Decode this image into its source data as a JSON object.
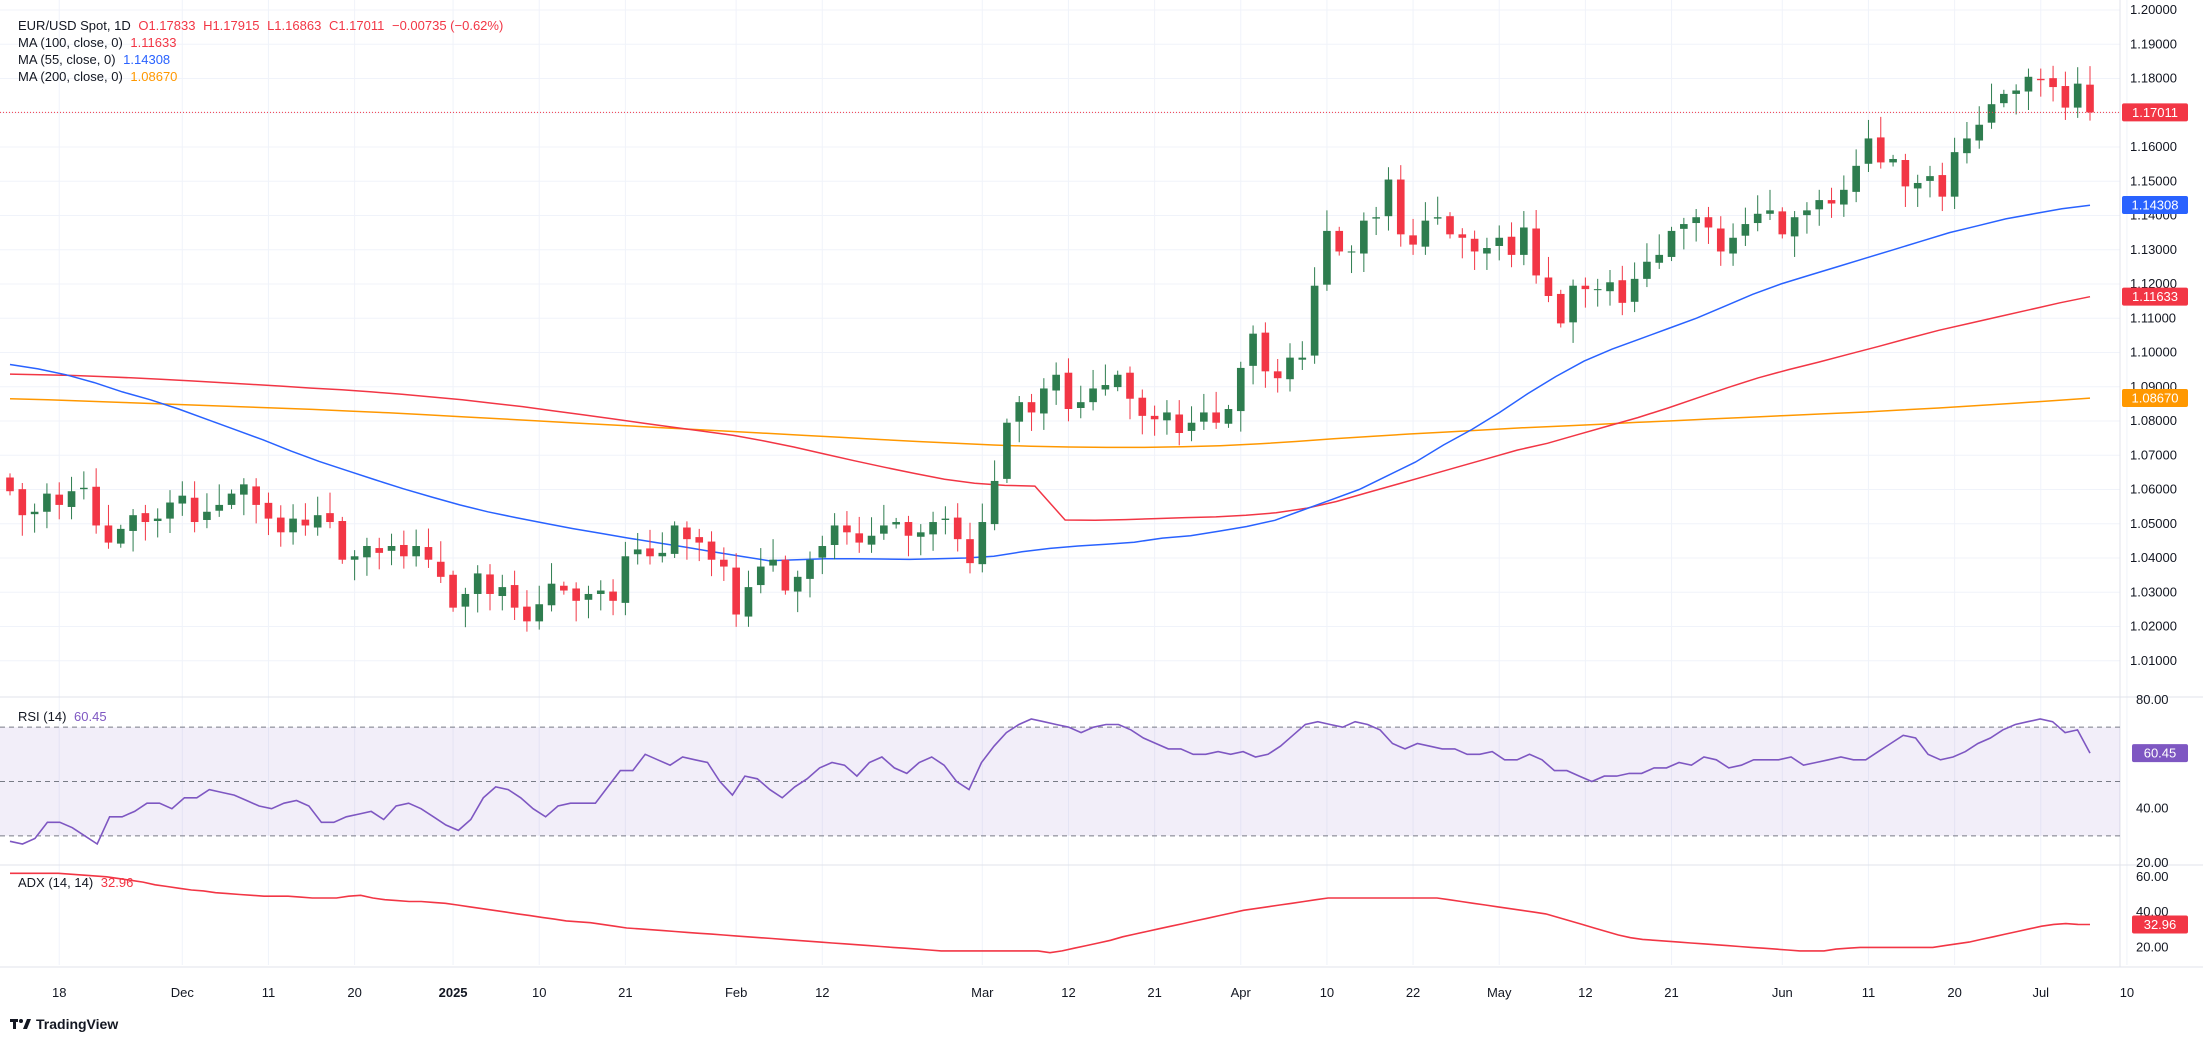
{
  "header": {
    "symbol": "EUR/USD Spot, 1D",
    "open": "O1.17833",
    "high": "H1.17915",
    "low": "L1.16863",
    "close": "C1.17011",
    "change": "−0.00735 (−0.62%)"
  },
  "ma_legend": [
    {
      "label": "MA (100, close, 0)",
      "value": "1.11633",
      "color": "#f23645"
    },
    {
      "label": "MA (55, close, 0)",
      "value": "1.14308",
      "color": "#2962ff"
    },
    {
      "label": "MA (200, close, 0)",
      "value": "1.08670",
      "color": "#ff9800"
    }
  ],
  "rsi_legend": {
    "label": "RSI (14)",
    "value": "60.45",
    "color": "#7e57c2"
  },
  "adx_legend": {
    "label": "ADX (14, 14)",
    "value": "32.96",
    "color": "#f23645"
  },
  "branding": {
    "name": "TradingView",
    "icon": "tradingview-logo-icon"
  },
  "colors": {
    "up": "#26a69a",
    "up_body": "#2e7d4f",
    "down": "#f23645",
    "grid": "#f0f3fa",
    "axis_text": "#131722"
  },
  "chart_data": {
    "type": "candlestick",
    "title": "EUR/USD Spot, 1D",
    "price_axis": {
      "ylim": [
        1.0,
        1.2
      ],
      "ticks": [
        "1.01000",
        "1.02000",
        "1.03000",
        "1.04000",
        "1.05000",
        "1.06000",
        "1.07000",
        "1.08000",
        "1.09000",
        "1.10000",
        "1.11000",
        "1.12000",
        "1.13000",
        "1.14000",
        "1.15000",
        "1.16000",
        "1.17000",
        "1.18000",
        "1.19000",
        "1.20000"
      ]
    },
    "x_ticks": [
      {
        "label": "18",
        "bar": 4,
        "bold": false
      },
      {
        "label": "Dec",
        "bar": 14,
        "bold": false
      },
      {
        "label": "11",
        "bar": 21,
        "bold": false
      },
      {
        "label": "20",
        "bar": 28,
        "bold": false
      },
      {
        "label": "2025",
        "bar": 36,
        "bold": true
      },
      {
        "label": "10",
        "bar": 43,
        "bold": false
      },
      {
        "label": "21",
        "bar": 50,
        "bold": false
      },
      {
        "label": "Feb",
        "bar": 59,
        "bold": false
      },
      {
        "label": "12",
        "bar": 66,
        "bold": false
      },
      {
        "label": "Mar",
        "bar": 79,
        "bold": false
      },
      {
        "label": "12",
        "bar": 86,
        "bold": false
      },
      {
        "label": "21",
        "bar": 93,
        "bold": false
      },
      {
        "label": "Apr",
        "bar": 100,
        "bold": false
      },
      {
        "label": "10",
        "bar": 107,
        "bold": false
      },
      {
        "label": "22",
        "bar": 114,
        "bold": false
      },
      {
        "label": "May",
        "bar": 121,
        "bold": false
      },
      {
        "label": "12",
        "bar": 128,
        "bold": false
      },
      {
        "label": "21",
        "bar": 135,
        "bold": false
      },
      {
        "label": "Jun",
        "bar": 144,
        "bold": false
      },
      {
        "label": "11",
        "bar": 151,
        "bold": false
      },
      {
        "label": "20",
        "bar": 158,
        "bold": false
      },
      {
        "label": "Jul",
        "bar": 165,
        "bold": false
      },
      {
        "label": "10",
        "bar": 172,
        "bold": false
      }
    ],
    "closes": [
      1.0595,
      1.0525,
      1.0535,
      1.0588,
      1.0555,
      1.0595,
      1.0605,
      1.0495,
      1.0445,
      1.0485,
      1.0525,
      1.0505,
      1.0515,
      1.0562,
      1.0582,
      1.0505,
      1.0535,
      1.0555,
      1.0588,
      1.0615,
      1.0555,
      1.0515,
      1.0475,
      1.0515,
      1.0495,
      1.0525,
      1.0505,
      1.0395,
      1.0405,
      1.0435,
      1.0415,
      1.0435,
      1.0405,
      1.0435,
      1.0395,
      1.0345,
      1.0255,
      1.0295,
      1.0355,
      1.0295,
      1.0315,
      1.0255,
      1.0215,
      1.0265,
      1.0325,
      1.0305,
      1.0275,
      1.0295,
      1.0305,
      1.0275,
      1.0405,
      1.0425,
      1.0405,
      1.0415,
      1.0495,
      1.0455,
      1.0445,
      1.0395,
      1.0375,
      1.0235,
      1.0315,
      1.0375,
      1.0395,
      1.0305,
      1.0345,
      1.0395,
      1.0435,
      1.0495,
      1.0475,
      1.0445,
      1.0465,
      1.0495,
      1.0505,
      1.0465,
      1.0475,
      1.0505,
      1.0515,
      1.0455,
      1.0385,
      1.0505,
      1.0625,
      1.0795,
      1.0855,
      1.0825,
      1.0895,
      1.0935,
      1.0835,
      1.0855,
      1.0895,
      1.0905,
      1.0935,
      1.0865,
      1.0815,
      1.0805,
      1.0825,
      1.0765,
      1.0795,
      1.0825,
      1.0795,
      1.0835,
      1.0955,
      1.1055,
      1.0945,
      1.0925,
      1.0985,
      1.0985,
      1.1195,
      1.1355,
      1.1295,
      1.1295,
      1.1385,
      1.1395,
      1.1505,
      1.1345,
      1.1315,
      1.1385,
      1.1395,
      1.1345,
      1.1335,
      1.1295,
      1.1305,
      1.1335,
      1.1285,
      1.1365,
      1.1225,
      1.1165,
      1.1085,
      1.1195,
      1.1185,
      1.1185,
      1.1205,
      1.1145,
      1.1215,
      1.1265,
      1.1285,
      1.1355,
      1.1375,
      1.1395,
      1.1365,
      1.1295,
      1.1335,
      1.1375,
      1.1405,
      1.1415,
      1.1345,
      1.1395,
      1.1415,
      1.1445,
      1.1435,
      1.1475,
      1.1545,
      1.1625,
      1.1555,
      1.1565,
      1.1485,
      1.1495,
      1.1515,
      1.1455,
      1.1585,
      1.1625,
      1.1665,
      1.1725,
      1.1755,
      1.1765,
      1.1805,
      1.1795,
      1.1775,
      1.1715,
      1.1785,
      1.1701
    ],
    "ma55": [
      1.0965,
      1.0952,
      1.0935,
      1.0912,
      1.0885,
      1.0862,
      1.0835,
      1.0805,
      1.0775,
      1.0745,
      1.0712,
      1.0682,
      1.0655,
      1.0628,
      1.0602,
      1.0578,
      1.0555,
      1.0535,
      1.0518,
      1.0502,
      1.0486,
      1.0472,
      1.0458,
      1.0445,
      1.0432,
      1.0418,
      1.0405,
      1.0392,
      1.0395,
      1.0398,
      1.0398,
      1.0397,
      1.0396,
      1.0398,
      1.04,
      1.0405,
      1.0418,
      1.0428,
      1.0435,
      1.044,
      1.0446,
      1.0458,
      1.0465,
      1.0478,
      1.0492,
      1.051,
      1.054,
      1.057,
      1.06,
      1.064,
      1.068,
      1.073,
      1.0775,
      1.0825,
      1.088,
      1.093,
      1.0975,
      1.101,
      1.104,
      1.107,
      1.11,
      1.1135,
      1.117,
      1.12,
      1.1225,
      1.125,
      1.1275,
      1.13,
      1.1325,
      1.135,
      1.137,
      1.139,
      1.1405,
      1.142,
      1.143
    ],
    "ma100": [
      1.0937,
      1.0935,
      1.0933,
      1.093,
      1.0926,
      1.0922,
      1.0917,
      1.0912,
      1.0907,
      1.0902,
      1.0896,
      1.0891,
      1.0885,
      1.0878,
      1.087,
      1.0862,
      1.0852,
      1.0842,
      1.083,
      1.0818,
      1.0806,
      1.0794,
      1.0782,
      1.077,
      1.0758,
      1.0742,
      1.0724,
      1.0704,
      1.0684,
      1.0665,
      1.0647,
      1.063,
      1.0618,
      1.0612,
      1.061,
      1.0511,
      1.051,
      1.0512,
      1.0515,
      1.0518,
      1.052,
      1.0525,
      1.0532,
      1.0545,
      1.0565,
      1.059,
      1.0615,
      1.064,
      1.0665,
      1.069,
      1.0715,
      1.0735,
      1.076,
      1.0785,
      1.081,
      1.0838,
      1.0868,
      1.0898,
      1.0926,
      1.095,
      1.0972,
      1.0995,
      1.1018,
      1.1042,
      1.1065,
      1.1085,
      1.1105,
      1.1125,
      1.1145,
      1.1163
    ],
    "ma200": [
      1.0865,
      1.0862,
      1.0858,
      1.0854,
      1.085,
      1.0846,
      1.0842,
      1.0838,
      1.0834,
      1.0829,
      1.0824,
      1.0818,
      1.0812,
      1.0806,
      1.08,
      1.0794,
      1.0788,
      1.0782,
      1.0776,
      1.077,
      1.0764,
      1.0758,
      1.0752,
      1.0746,
      1.074,
      1.0735,
      1.073,
      1.0726,
      1.0724,
      1.0723,
      1.0723,
      1.0725,
      1.0728,
      1.0733,
      1.074,
      1.0748,
      1.0755,
      1.0762,
      1.0768,
      1.0774,
      1.078,
      1.0785,
      1.079,
      1.0796,
      1.0801,
      1.0806,
      1.0811,
      1.0816,
      1.0821,
      1.0826,
      1.0832,
      1.0838,
      1.0845,
      1.0852,
      1.0859,
      1.0867
    ],
    "rsi": {
      "ylim": [
        20,
        80
      ],
      "ticks": [
        "20.00",
        "40.00",
        "80.00"
      ],
      "bands": [
        30,
        50,
        70
      ],
      "values": [
        28,
        27,
        29,
        35,
        35,
        33,
        30,
        27,
        37,
        37,
        39,
        42,
        42,
        40,
        44,
        44,
        47,
        46,
        45,
        43,
        41,
        40,
        42,
        43,
        41,
        35,
        35,
        37,
        38,
        39,
        36,
        41,
        42,
        40,
        37,
        34,
        32,
        36,
        44,
        48,
        47,
        44,
        40,
        37,
        41,
        42,
        42,
        42,
        48,
        54,
        54,
        60,
        58,
        56,
        59,
        58,
        57,
        50,
        45,
        52,
        51,
        47,
        44,
        48,
        51,
        55,
        57,
        56,
        52,
        57,
        59,
        55,
        53,
        57,
        59,
        56,
        50,
        47,
        57,
        63,
        68,
        71,
        73,
        72,
        71,
        70,
        68,
        70,
        71,
        71,
        69,
        66,
        64,
        62,
        62,
        60,
        60,
        61,
        60,
        61,
        59,
        60,
        63,
        67,
        71,
        72,
        71,
        70,
        72,
        71,
        69,
        64,
        62,
        64,
        63,
        62,
        62,
        60,
        60,
        61,
        58,
        58,
        60,
        58,
        54,
        54,
        52,
        50,
        52,
        52,
        53,
        53,
        55,
        55,
        57,
        56,
        59,
        58,
        55,
        56,
        58,
        58,
        58,
        59,
        56,
        57,
        58,
        59,
        58,
        58,
        61,
        64,
        67,
        66,
        60,
        58,
        59,
        61,
        64,
        66,
        69,
        71,
        72,
        73,
        72,
        68,
        69,
        60.45
      ]
    },
    "adx": {
      "ylim": [
        10,
        65
      ],
      "ticks": [
        "20.00",
        "40.00",
        "60.00"
      ],
      "values": [
        62,
        62,
        62,
        62,
        62,
        61.5,
        61,
        60.5,
        60,
        59,
        58,
        57,
        55.5,
        54.5,
        53.5,
        52.5,
        52,
        51,
        50.5,
        50,
        49.5,
        49,
        49,
        49,
        48.5,
        48,
        48,
        48,
        49,
        49.5,
        48,
        47,
        46.5,
        46,
        46,
        45.5,
        45,
        44,
        43,
        42,
        41,
        40,
        39,
        38,
        37,
        36,
        35,
        34.5,
        34,
        33,
        32,
        31,
        30.5,
        30,
        29.5,
        29,
        28.5,
        28,
        27.5,
        27,
        26.5,
        26,
        25.5,
        25,
        24.5,
        24,
        23.5,
        23,
        22.5,
        22,
        21.5,
        21,
        20.5,
        20,
        19.5,
        19,
        18.5,
        18,
        18,
        18,
        18,
        18,
        18,
        18,
        18,
        18,
        17,
        18,
        19.5,
        21,
        22.5,
        24,
        26,
        27.5,
        29,
        30.5,
        32,
        33.5,
        35,
        36.5,
        38,
        39.5,
        41,
        42,
        43,
        44,
        45,
        46,
        47,
        48,
        48,
        48,
        48,
        48,
        48,
        48,
        48,
        48,
        48,
        47,
        46,
        45,
        44,
        43,
        42,
        41,
        40,
        39,
        37,
        35,
        33,
        31,
        29,
        27,
        25.5,
        24.5,
        24,
        23.5,
        23,
        22.5,
        22,
        21.5,
        21,
        20.5,
        20,
        19.5,
        19,
        18.5,
        18,
        18,
        18,
        19,
        19.5,
        20,
        20,
        20,
        20,
        20,
        20,
        20,
        21,
        22,
        23,
        24.5,
        26,
        27.5,
        29,
        30.5,
        32,
        33,
        33.5,
        33,
        32.96
      ]
    },
    "last_labels": [
      {
        "text": "1.17011",
        "color": "#f23645",
        "value": 1.17011
      },
      {
        "text": "1.14308",
        "color": "#2962ff",
        "value": 1.14308
      },
      {
        "text": "1.11633",
        "color": "#f23645",
        "value": 1.11633
      },
      {
        "text": "1.08670",
        "color": "#ff9800",
        "value": 1.0867
      }
    ],
    "rsi_last_label": {
      "text": "60.45",
      "color": "#7e57c2"
    },
    "adx_last_label": {
      "text": "32.96",
      "color": "#f23645"
    }
  }
}
